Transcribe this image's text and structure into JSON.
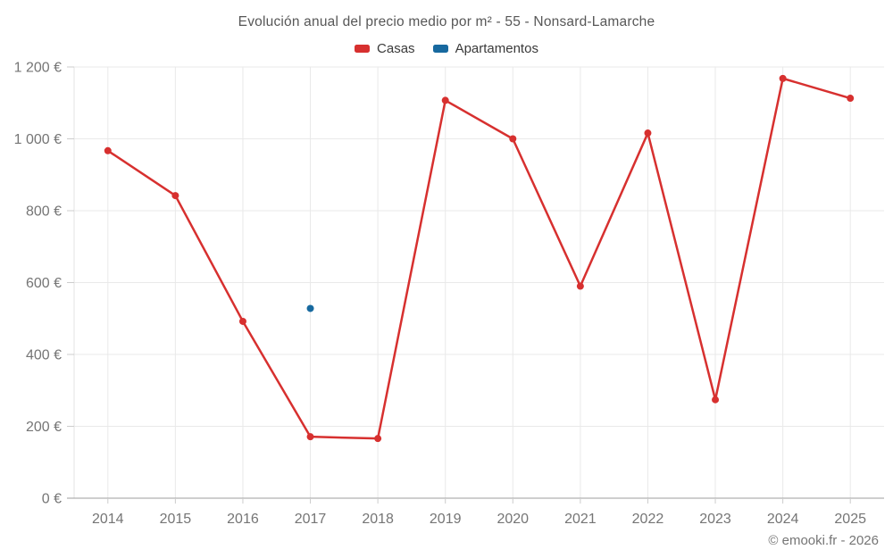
{
  "footer": {
    "credit": "© emooki.fr - 2026"
  },
  "chart_data": {
    "type": "line",
    "title": "Evolución anual del precio medio por m² - 55 - Nonsard-Lamarche",
    "categories": [
      "2014",
      "2015",
      "2016",
      "2017",
      "2018",
      "2019",
      "2020",
      "2021",
      "2022",
      "2023",
      "2024",
      "2025"
    ],
    "series": [
      {
        "name": "Casas",
        "color": "#d7302f",
        "values": [
          967,
          842,
          492,
          171,
          166,
          1107,
          1000,
          590,
          1016,
          274,
          1168,
          1113
        ]
      },
      {
        "name": "Apartamentos",
        "color": "#17699f",
        "values": [
          null,
          null,
          null,
          528,
          null,
          null,
          null,
          null,
          null,
          null,
          null,
          null
        ]
      }
    ],
    "xlabel": "",
    "ylabel": "",
    "ylim": [
      0,
      1200
    ],
    "y_tick_step": 200,
    "y_tick_labels": [
      "0 €",
      "200 €",
      "400 €",
      "600 €",
      "800 €",
      "1 000 €",
      "1 200 €"
    ],
    "grid": true,
    "legend_position": "top-center",
    "marker": "circle",
    "line_width": 2.5
  },
  "colors": {
    "grid": "#e9e9e9",
    "axis": "#9e9e9e",
    "tick": "#cccccc",
    "axis_text": "#757575",
    "title_text": "#575757"
  }
}
